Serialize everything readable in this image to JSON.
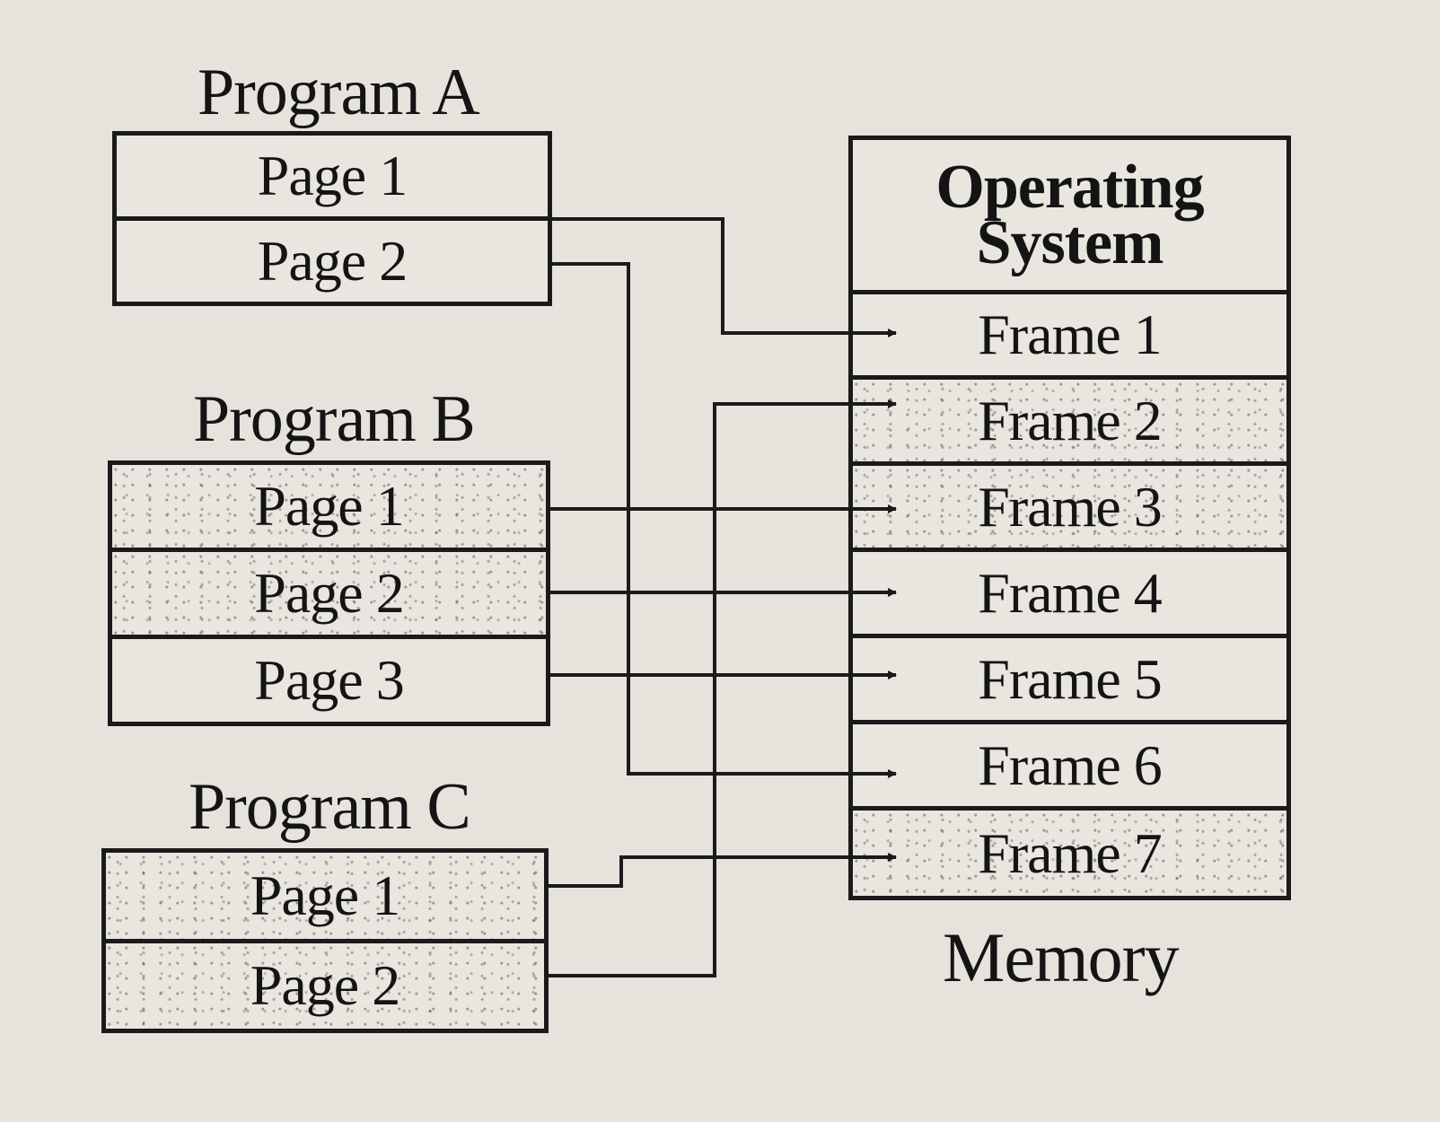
{
  "programs": [
    {
      "title": "Program A",
      "pages": [
        "Page 1",
        "Page 2"
      ]
    },
    {
      "title": "Program B",
      "pages": [
        "Page 1",
        "Page 2",
        "Page 3"
      ]
    },
    {
      "title": "Program C",
      "pages": [
        "Page 1",
        "Page 2"
      ]
    }
  ],
  "memory": {
    "label": "Memory",
    "os_line1": "Operating",
    "os_line2": "System",
    "frames": [
      "Frame 1",
      "Frame 2",
      "Frame 3",
      "Frame 4",
      "Frame 5",
      "Frame 6",
      "Frame 7"
    ]
  },
  "mappings": [
    {
      "from": "Program A / Page 1",
      "to": "Frame 1"
    },
    {
      "from": "Program A / Page 2",
      "to": "Frame 6"
    },
    {
      "from": "Program B / Page 1",
      "to": "Frame 3"
    },
    {
      "from": "Program B / Page 2",
      "to": "Frame 4"
    },
    {
      "from": "Program B / Page 3",
      "to": "Frame 5"
    },
    {
      "from": "Program C / Page 1",
      "to": "Frame 7"
    },
    {
      "from": "Program C / Page 2",
      "to": "Frame 2"
    }
  ],
  "colors": {
    "ink": "#141414",
    "paper": "#e6e2dc"
  }
}
